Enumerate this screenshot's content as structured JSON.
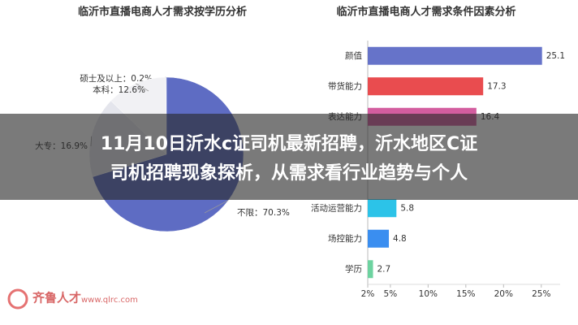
{
  "chart_data": [
    {
      "type": "pie",
      "title": "临沂市直播电商人才需求按学历分析",
      "values": [
        0.2,
        12.6,
        16.9,
        70.3
      ],
      "value_labels": [
        "硕士及以上：0.2%",
        "本科：12.6%",
        "大专：16.9%",
        "不限：70.3%"
      ],
      "colors": [
        "#c9cbe0",
        "#f1f1f4",
        "#e4e5ec",
        "#5e6cc3"
      ]
    },
    {
      "type": "hbar",
      "title": "临沂市直播电商人才需求条件因素分析",
      "categories": [
        "颜值",
        "带货能力",
        "表达能力",
        null,
        null,
        "活动运营能力",
        "场控能力",
        "学历"
      ],
      "values": [
        25.1,
        17.3,
        16.4,
        null,
        null,
        5.8,
        4.8,
        2.7
      ],
      "colors": [
        "#6673c9",
        "#e94c4f",
        "#d35d9f",
        "#888888",
        "#888888",
        "#2cc3e8",
        "#3a8ef0",
        "#6dd3a0"
      ],
      "xlim": [
        2,
        27.5
      ],
      "xticks": [
        {
          "value": 2,
          "label": "2%"
        },
        {
          "value": 5,
          "label": "5%"
        },
        {
          "value": 10,
          "label": "10%"
        },
        {
          "value": 15,
          "label": "15%"
        },
        {
          "value": 20,
          "label": "20%"
        },
        {
          "value": 25,
          "label": "25%"
        }
      ]
    }
  ],
  "overlay": {
    "headline": [
      "11月10日沂水c证司机最新招聘，沂水地区C证",
      "司机招聘现象探析，从需求看行业趋势与个人"
    ]
  },
  "watermark": {
    "brand": "齐鲁人才",
    "url": "www.qlrc.com"
  }
}
